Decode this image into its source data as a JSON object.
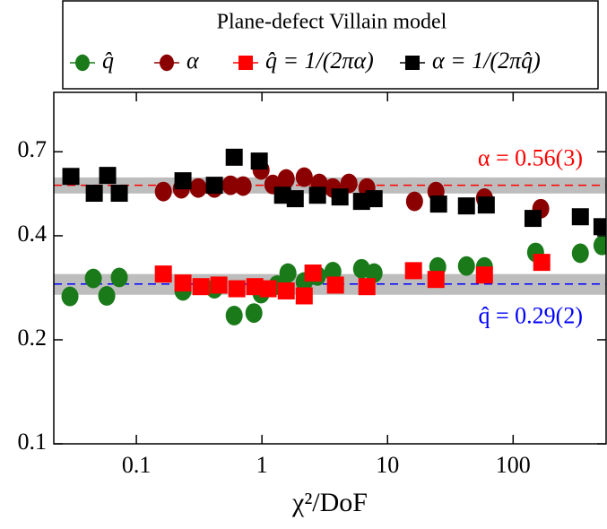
{
  "chart_data": {
    "type": "scatter",
    "title": "Plane-defect Villain model",
    "x_label": "χ²/DoF",
    "log_x": true,
    "log_y": true,
    "xlim": [
      0.022,
      550
    ],
    "ylim": [
      0.1,
      1.04
    ],
    "xticks": [
      0.1,
      1,
      10,
      100
    ],
    "yticks": [
      0.1,
      0.2,
      0.4,
      0.7
    ],
    "series": [
      {
        "name": "q̂",
        "color": "#1a7a1a",
        "marker": "circle",
        "x": [
          0.0296,
          0.0454,
          0.0581,
          0.0731,
          0.235,
          0.418,
          0.601,
          0.863,
          0.984,
          1.32,
          1.61,
          2.17,
          2.77,
          3.67,
          6.21,
          7.81,
          25.1,
          42.5,
          59.1,
          151,
          343,
          510
        ],
        "values": [
          0.267,
          0.301,
          0.268,
          0.303,
          0.277,
          0.281,
          0.235,
          0.239,
          0.272,
          0.288,
          0.312,
          0.294,
          0.306,
          0.315,
          0.321,
          0.312,
          0.325,
          0.327,
          0.325,
          0.358,
          0.356,
          0.375
        ]
      },
      {
        "name": "α",
        "color": "#8b0000",
        "marker": "circle",
        "x": [
          0.164,
          0.228,
          0.311,
          0.418,
          0.562,
          0.708,
          0.984,
          1.22,
          1.56,
          2.17,
          2.86,
          3.67,
          4.93,
          6.85,
          16.4,
          24.3,
          59.1,
          166
        ],
        "values": [
          0.537,
          0.547,
          0.55,
          0.55,
          0.56,
          0.557,
          0.62,
          0.563,
          0.584,
          0.591,
          0.567,
          0.55,
          0.567,
          0.55,
          0.503,
          0.537,
          0.514,
          0.479
        ]
      },
      {
        "name": "q̂ = 1/(2πα)",
        "color": "#ff0000",
        "marker": "square",
        "x": [
          0.164,
          0.235,
          0.327,
          0.454,
          0.631,
          0.877,
          1.12,
          1.56,
          2.17,
          2.55,
          3.85,
          6.85,
          16.1,
          24.3,
          59.1,
          169
        ],
        "values": [
          0.31,
          0.292,
          0.285,
          0.288,
          0.281,
          0.285,
          0.281,
          0.277,
          0.268,
          0.312,
          0.288,
          0.285,
          0.317,
          0.299,
          0.308,
          0.335
        ]
      },
      {
        "name": "α = 1/(2πq̂)",
        "color": "#000000",
        "marker": "square",
        "x": [
          0.0301,
          0.0462,
          0.059,
          0.0731,
          0.235,
          0.418,
          0.601,
          0.952,
          1.46,
          1.84,
          2.77,
          4.18,
          6.21,
          7.81,
          25.5,
          42.5,
          61.1,
          144,
          343,
          510
        ],
        "values": [
          0.594,
          0.531,
          0.598,
          0.531,
          0.577,
          0.56,
          0.675,
          0.658,
          0.524,
          0.512,
          0.524,
          0.518,
          0.503,
          0.512,
          0.494,
          0.488,
          0.491,
          0.449,
          0.454,
          0.425
        ]
      }
    ],
    "reference_lines": [
      {
        "value": 0.56,
        "band": [
          0.53,
          0.59
        ],
        "color": "#ff0000",
        "label": "α = 0.56(3)"
      },
      {
        "value": 0.29,
        "band": [
          0.27,
          0.31
        ],
        "color": "#0000ff",
        "label": "q̂ = 0.29(2)"
      }
    ]
  }
}
